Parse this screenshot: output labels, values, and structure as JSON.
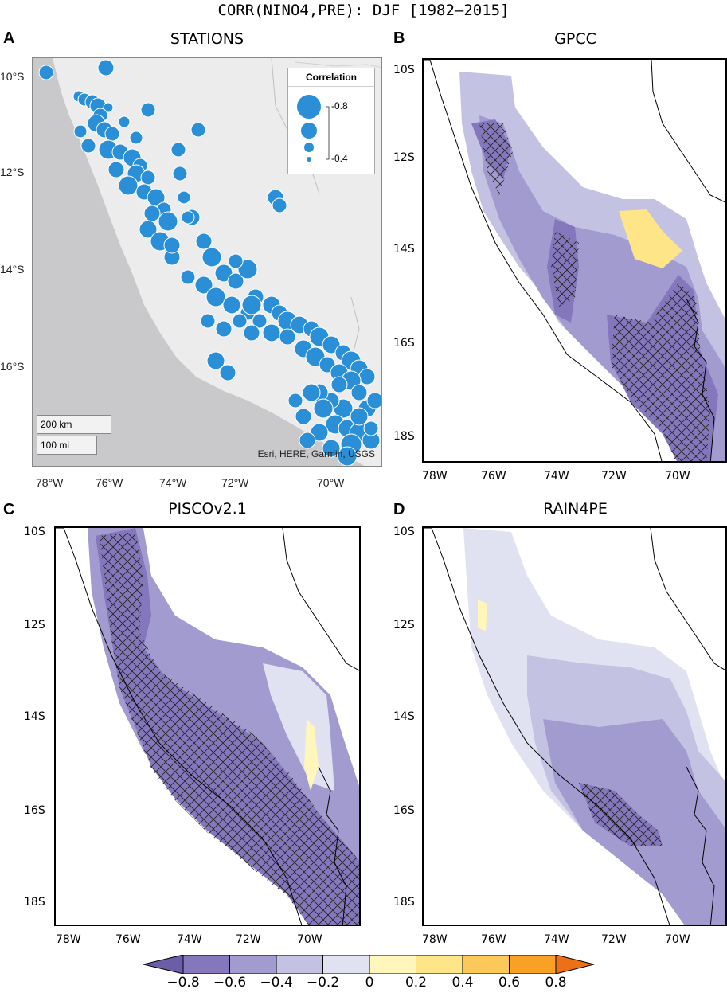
{
  "title": "CORR(NINO4,PRE): DJF [1982–2015]",
  "panels": {
    "a": {
      "letter": "A",
      "title": "STATIONS"
    },
    "b": {
      "letter": "B",
      "title": "GPCC"
    },
    "c": {
      "letter": "C",
      "title": "PISCOv2.1"
    },
    "d": {
      "letter": "D",
      "title": "RAIN4PE"
    }
  },
  "stations_axes": {
    "lat_ticks": [
      "10°S",
      "12°S",
      "14°S",
      "16°S"
    ],
    "lon_ticks": [
      "78°W",
      "76°W",
      "74°W",
      "72°W",
      "70°W"
    ]
  },
  "map_axes": {
    "lat_ticks": [
      "10S",
      "12S",
      "14S",
      "16S",
      "18S"
    ],
    "lon_ticks": [
      "78W",
      "76W",
      "74W",
      "72W",
      "70W"
    ]
  },
  "stations_legend": {
    "title": "Correlation",
    "max_label": "-0.8",
    "min_label": "-0.4"
  },
  "scalebar": {
    "km": "200 km",
    "mi": "100 mi"
  },
  "attribution": "Esri, HERE, Garmin, USGS",
  "colorbar": {
    "labels": [
      "−0.8",
      "−0.6",
      "−0.4",
      "−0.2",
      "0",
      "0.2",
      "0.4",
      "0.6",
      "0.8"
    ],
    "colors": [
      "#6b5da6",
      "#8477bb",
      "#a29bcf",
      "#c4c2e3",
      "#e0e2f1",
      "#fff6bb",
      "#fde588",
      "#fdc85a",
      "#f9a124",
      "#ee7016"
    ]
  },
  "colors": {
    "station_marker": "#2a8fd6",
    "station_land": "#ececec",
    "station_ocean": "#c8c7c9",
    "hatch": "#222222"
  }
}
